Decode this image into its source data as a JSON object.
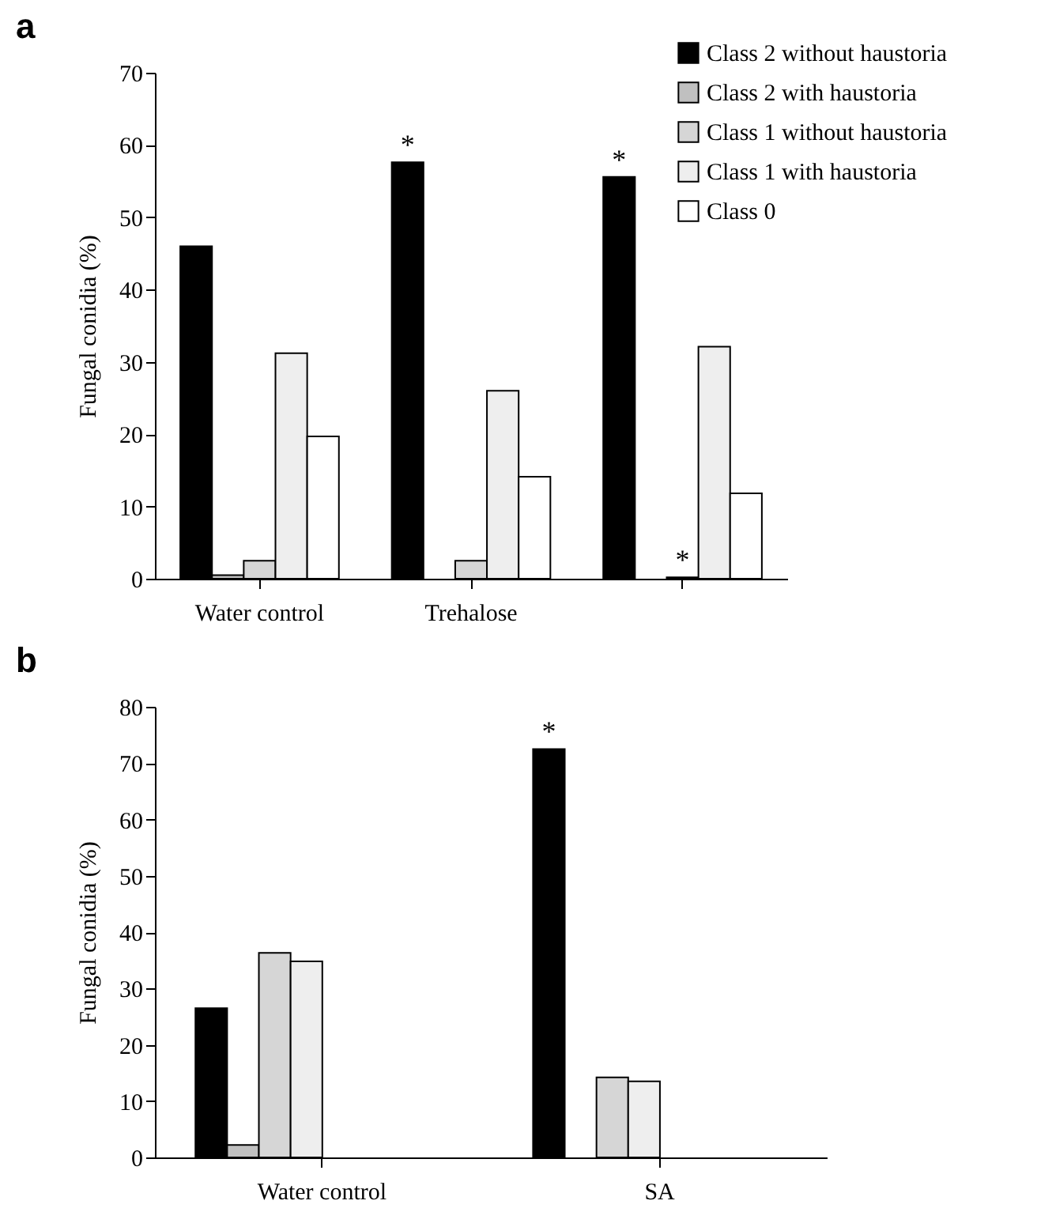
{
  "chart_data": [
    {
      "type": "bar",
      "title": "a",
      "ylabel": "Fungal conidia (%)",
      "categories": [
        "Water control",
        "Trehalose",
        null
      ],
      "ylim": [
        0,
        70
      ],
      "yticks": [
        0,
        10,
        20,
        30,
        40,
        50,
        60,
        70
      ],
      "grid": false,
      "legend": "top right",
      "series": [
        {
          "name": "Class 2 without haustoria",
          "color": "#000000",
          "values": [
            46,
            57.6,
            55.6
          ],
          "value_labels": [
            null,
            "*",
            "*"
          ]
        },
        {
          "name": "Class 2 with haustoria",
          "color": "#c0c0c0",
          "values": [
            0.5,
            null,
            null
          ]
        },
        {
          "name": "Class 1 without haustoria",
          "color": "#d6d6d6",
          "values": [
            2.5,
            2.5,
            0.2
          ],
          "value_labels": [
            null,
            null,
            "*"
          ]
        },
        {
          "name": "Class 1 with haustoria",
          "color": "#eeeeee",
          "values": [
            31.2,
            26,
            32.1
          ]
        },
        {
          "name": "Class 0",
          "color": "#ffffff",
          "values": [
            19.7,
            14.1,
            11.8
          ]
        }
      ]
    },
    {
      "type": "bar",
      "title": "b",
      "ylabel": "Fungal conidia (%)",
      "categories": [
        "Water control",
        "SA"
      ],
      "ylim": [
        0,
        80
      ],
      "yticks": [
        0,
        10,
        20,
        30,
        40,
        50,
        60,
        70,
        80
      ],
      "grid": false,
      "series": [
        {
          "color": "#000000",
          "values": [
            26.5,
            72.5
          ],
          "value_labels": [
            null,
            "*"
          ]
        },
        {
          "color": "#c0c0c0",
          "values": [
            2.2,
            null
          ]
        },
        {
          "color": "#d6d6d6",
          "values": [
            36.3,
            14.2
          ]
        },
        {
          "color": "#eeeeee",
          "values": [
            34.8,
            13.5
          ]
        }
      ]
    }
  ]
}
